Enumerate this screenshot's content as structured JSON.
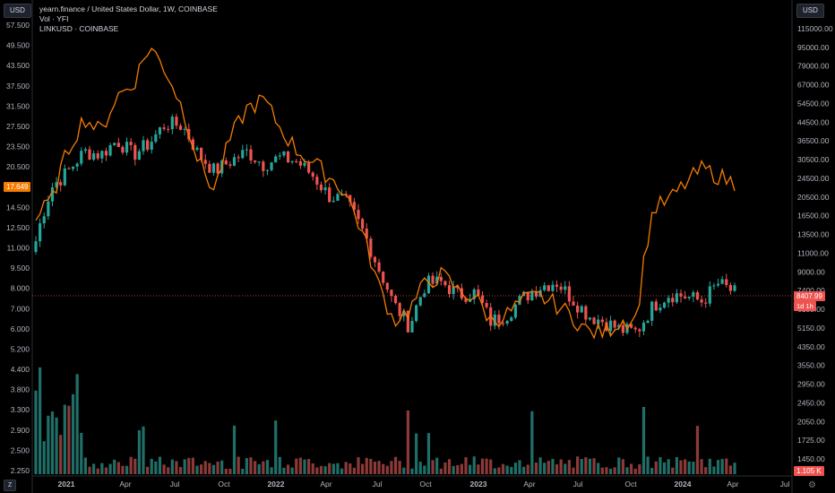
{
  "header": {
    "title": "yearn.finance / United States Dollar, 1W, COINBASE",
    "volume": "Vol · YFI",
    "compare": "LINKUSD · COINBASE"
  },
  "left_scale_button": "USD",
  "right_scale_button": "USD",
  "price_tag_left": "17.649",
  "price_tag_right": "8407.99",
  "price_tag_right_sub": "1d 1h",
  "volume_tag": "1.105 K",
  "bottom_left_icon": "Z",
  "bottom_right_icon": "gear-icon",
  "colors": {
    "up": "#26a69a",
    "down": "#ef5350",
    "compare": "#f57c00",
    "background": "#000000"
  },
  "chart_data": {
    "type": "candlestick",
    "x_ticks": [
      "2021",
      "Apr",
      "Jul",
      "Oct",
      "2022",
      "Apr",
      "Jul",
      "Oct",
      "2023",
      "Apr",
      "Jul",
      "Oct",
      "2024",
      "Apr",
      "Jul"
    ],
    "left_axis_ticks": [
      "57.500",
      "49.500",
      "43.500",
      "37.500",
      "31.500",
      "27.500",
      "23.500",
      "20.500",
      "17.649",
      "14.500",
      "12.500",
      "11.000",
      "9.500",
      "8.000",
      "7.000",
      "6.000",
      "5.200",
      "4.400",
      "3.800",
      "3.300",
      "2.900",
      "2.500",
      "2.250"
    ],
    "right_axis_ticks": [
      "115000.00",
      "95000.00",
      "79000.00",
      "67000.00",
      "54500.00",
      "44500.00",
      "36500.00",
      "30500.00",
      "24500.00",
      "20500.00",
      "16500.00",
      "13500.00",
      "11000.00",
      "9000.00",
      "7400.00",
      "6150.00",
      "5150.00",
      "4350.00",
      "3550.00",
      "2950.00",
      "2450.00",
      "2050.00",
      "1725.00",
      "1450.00"
    ],
    "series": [
      {
        "name": "YFI",
        "kind": "candles",
        "close_trend": [
          14000,
          24000,
          28000,
          34000,
          33000,
          38000,
          33000,
          37000,
          45000,
          44000,
          33000,
          28000,
          31000,
          34000,
          30000,
          32000,
          31000,
          27000,
          22000,
          21000,
          16000,
          11000,
          7500,
          6000,
          9200,
          9300,
          8200,
          8400,
          6300,
          6800,
          8000,
          8900,
          9400,
          7900,
          6700,
          6300,
          5800,
          5700,
          7400,
          8300,
          8100,
          7700,
          9200,
          8400
        ]
      },
      {
        "name": "LINKUSD · COINBASE",
        "kind": "line",
        "values": [
          13,
          15,
          22,
          28,
          25,
          33,
          36,
          48,
          40,
          30,
          20,
          16,
          24,
          30,
          32,
          26,
          22,
          20,
          18,
          16,
          12,
          8,
          6,
          6.5,
          8,
          8.5,
          7.5,
          7.2,
          6,
          6.3,
          7,
          7.2,
          6.8,
          6.2,
          5.5,
          5.5,
          6,
          6.1,
          14,
          15,
          17,
          19,
          18,
          17
        ]
      }
    ]
  }
}
